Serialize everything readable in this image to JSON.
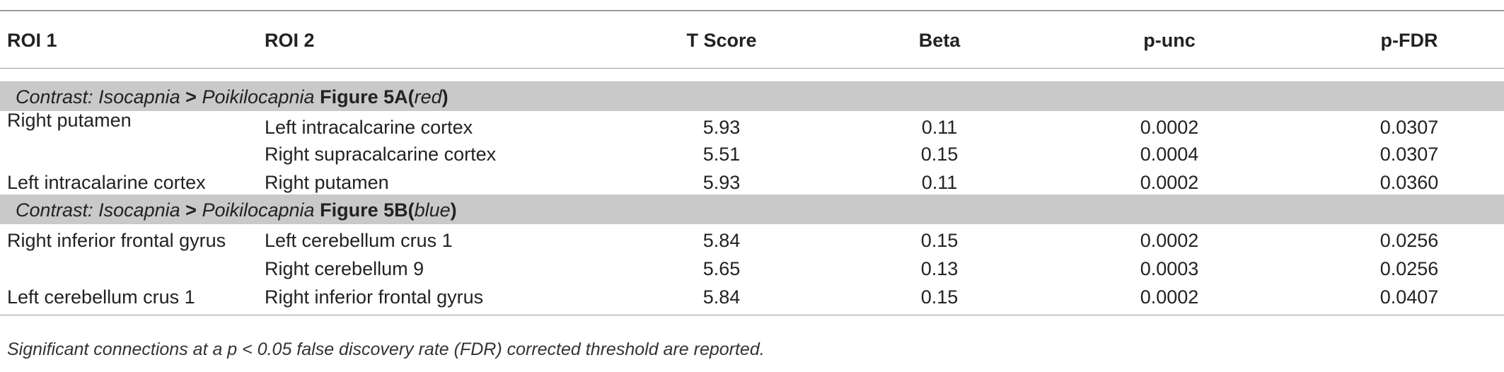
{
  "table": {
    "headers": {
      "roi1": "ROI 1",
      "roi2": "ROI 2",
      "t_score": "T Score",
      "beta": "Beta",
      "p_unc": "p-unc",
      "p_fdr": "p-FDR"
    },
    "sections": [
      {
        "contrast_label": "Contrast:",
        "contrast_a": "Isocapnia",
        "gt": ">",
        "contrast_b": "Poikilocapnia",
        "figure": "Figure 5A",
        "color_word": "red",
        "rows": [
          {
            "roi1": "Right putamen",
            "roi2": "Left intracalcarine cortex",
            "t": "5.93",
            "beta": "0.11",
            "punc": "0.0002",
            "pfdr": "0.0307"
          },
          {
            "roi1": "",
            "roi2": "Right supracalcarine cortex",
            "t": "5.51",
            "beta": "0.15",
            "punc": "0.0004",
            "pfdr": "0.0307"
          },
          {
            "roi1": "Left intracalarine cortex",
            "roi2": "Right putamen",
            "t": "5.93",
            "beta": "0.11",
            "punc": "0.0002",
            "pfdr": "0.0360"
          }
        ]
      },
      {
        "contrast_label": "Contrast:",
        "contrast_a": "Isocapnia",
        "gt": ">",
        "contrast_b": "Poikilocapnia",
        "figure": "Figure 5B",
        "color_word": "blue",
        "rows": [
          {
            "roi1": "Right inferior frontal gyrus",
            "roi2": "Left cerebellum crus 1",
            "t": "5.84",
            "beta": "0.15",
            "punc": "0.0002",
            "pfdr": "0.0256"
          },
          {
            "roi1": "",
            "roi2": "Right cerebellum 9",
            "t": "5.65",
            "beta": "0.13",
            "punc": "0.0003",
            "pfdr": "0.0256"
          },
          {
            "roi1": "Left cerebellum crus 1",
            "roi2": "Right inferior frontal gyrus",
            "t": "5.84",
            "beta": "0.15",
            "punc": "0.0002",
            "pfdr": "0.0407"
          }
        ]
      }
    ]
  },
  "footnote": "Significant connections at a p < 0.05 false discovery rate (FDR) corrected threshold are reported.",
  "colors": {
    "section_bg": "#c9c9c9",
    "rule": "#9a9a9a",
    "text": "#222222"
  }
}
